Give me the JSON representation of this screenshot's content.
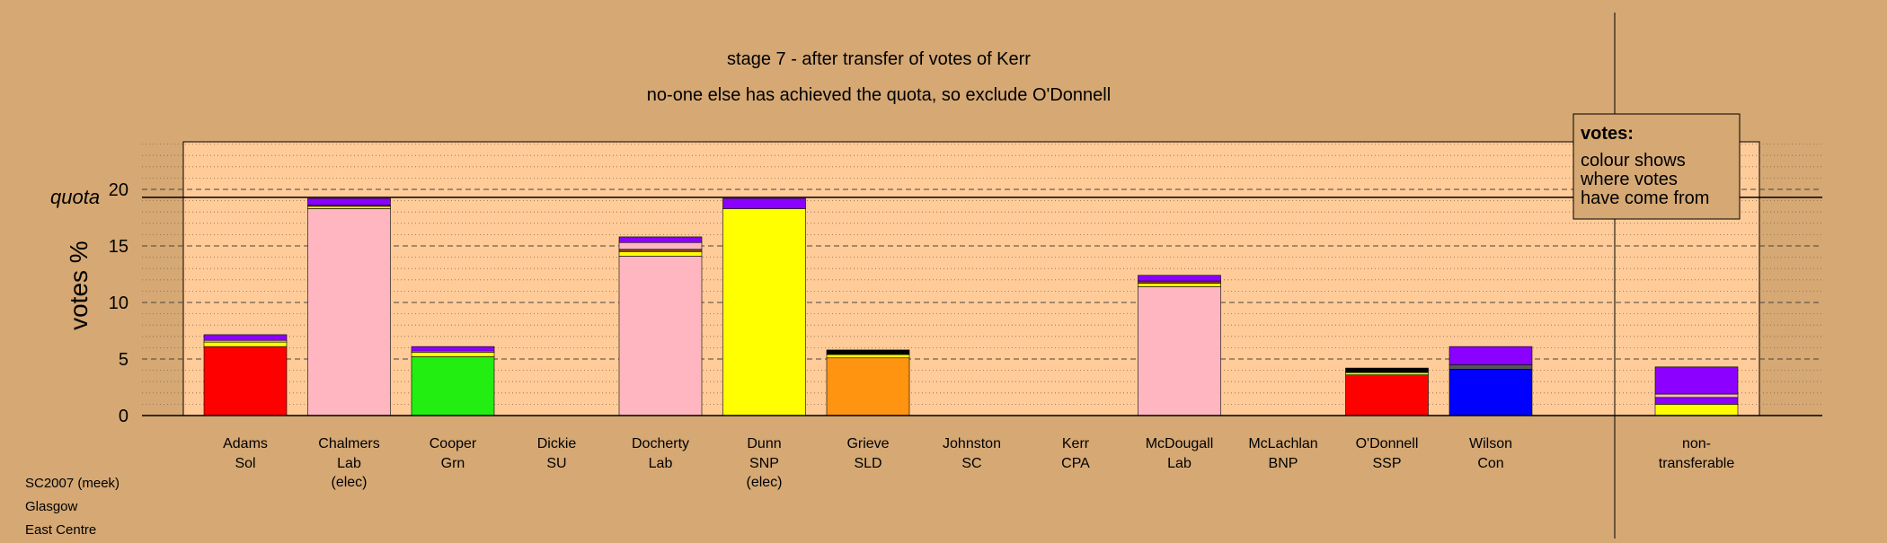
{
  "chart_data": {
    "type": "bar",
    "stacked": true,
    "title": "stage 7 - after transfer of votes of Kerr",
    "subtitle": "no-one else has achieved the quota, so exclude O'Donnell",
    "ylabel": "votes %",
    "quota_label": "quota",
    "quota_value": 19.3,
    "ylim": [
      0,
      24.5
    ],
    "yticks": [
      0,
      5,
      10,
      15,
      20
    ],
    "grid": "dashed every 5, dotted every 1",
    "legend": {
      "position": "top-right",
      "title": "votes:",
      "lines": [
        "colour shows",
        "where votes",
        "have come from"
      ]
    },
    "candidates": [
      {
        "name": "Adams",
        "party": "Sol",
        "note": "",
        "segments": [
          {
            "value": 6.1,
            "color": "#ff0000"
          },
          {
            "value": 0.4,
            "color": "#ffff00"
          },
          {
            "value": 0.15,
            "color": "#ffb6c1"
          },
          {
            "value": 0.5,
            "color": "#8b00ff"
          }
        ]
      },
      {
        "name": "Chalmers",
        "party": "Lab",
        "note": "(elec)",
        "segments": [
          {
            "value": 18.3,
            "color": "#ffb6c1"
          },
          {
            "value": 0.2,
            "color": "#ffff00"
          },
          {
            "value": 0.1,
            "color": "#8b4513"
          },
          {
            "value": 0.6,
            "color": "#8b00ff"
          }
        ]
      },
      {
        "name": "Cooper",
        "party": "Grn",
        "note": "",
        "segments": [
          {
            "value": 5.2,
            "color": "#22ee11"
          },
          {
            "value": 0.4,
            "color": "#ffff00"
          },
          {
            "value": 0.1,
            "color": "#ffb6c1"
          },
          {
            "value": 0.4,
            "color": "#8b00ff"
          }
        ]
      },
      {
        "name": "Dickie",
        "party": "SU",
        "note": "",
        "segments": []
      },
      {
        "name": "Docherty",
        "party": "Lab",
        "note": "",
        "segments": [
          {
            "value": 14.1,
            "color": "#ffb6c1"
          },
          {
            "value": 0.4,
            "color": "#ffff00"
          },
          {
            "value": 0.2,
            "color": "#8b4513"
          },
          {
            "value": 0.6,
            "color": "#ffb6c1"
          },
          {
            "value": 0.5,
            "color": "#8b00ff"
          }
        ]
      },
      {
        "name": "Dunn",
        "party": "SNP",
        "note": "(elec)",
        "segments": [
          {
            "value": 18.3,
            "color": "#ffff00"
          },
          {
            "value": 0.9,
            "color": "#8b00ff"
          }
        ]
      },
      {
        "name": "Grieve",
        "party": "SLD",
        "note": "",
        "segments": [
          {
            "value": 5.1,
            "color": "#ff9410"
          },
          {
            "value": 0.3,
            "color": "#ffff00"
          },
          {
            "value": 0.4,
            "color": "#000000"
          }
        ]
      },
      {
        "name": "Johnston",
        "party": "SC",
        "note": "",
        "segments": []
      },
      {
        "name": "Kerr",
        "party": "CPA",
        "note": "",
        "segments": []
      },
      {
        "name": "McDougall",
        "party": "Lab",
        "note": "",
        "segments": [
          {
            "value": 11.4,
            "color": "#ffb6c1"
          },
          {
            "value": 0.3,
            "color": "#ffff00"
          },
          {
            "value": 0.2,
            "color": "#8b4513"
          },
          {
            "value": 0.5,
            "color": "#8b00ff"
          }
        ]
      },
      {
        "name": "McLachlan",
        "party": "BNP",
        "note": "",
        "segments": []
      },
      {
        "name": "O'Donnell",
        "party": "SSP",
        "note": "",
        "segments": [
          {
            "value": 3.6,
            "color": "#ff0000"
          },
          {
            "value": 0.2,
            "color": "#ffff00"
          },
          {
            "value": 0.4,
            "color": "#000000"
          }
        ]
      },
      {
        "name": "Wilson",
        "party": "Con",
        "note": "",
        "segments": [
          {
            "value": 4.1,
            "color": "#0000ff"
          },
          {
            "value": 0.4,
            "color": "#555555"
          },
          {
            "value": 1.6,
            "color": "#8b00ff"
          }
        ]
      },
      {
        "name": "non-",
        "party": "transferable",
        "note": "",
        "separate": true,
        "segments": [
          {
            "value": 1.0,
            "color": "#ffff00"
          },
          {
            "value": 0.6,
            "color": "#8b00ff"
          },
          {
            "value": 0.3,
            "color": "#ffb6c1"
          },
          {
            "value": 2.4,
            "color": "#8b00ff"
          }
        ]
      }
    ]
  },
  "footer": {
    "line1": "SC2007 (meek)",
    "line2": "Glasgow",
    "line3": "East Centre"
  }
}
